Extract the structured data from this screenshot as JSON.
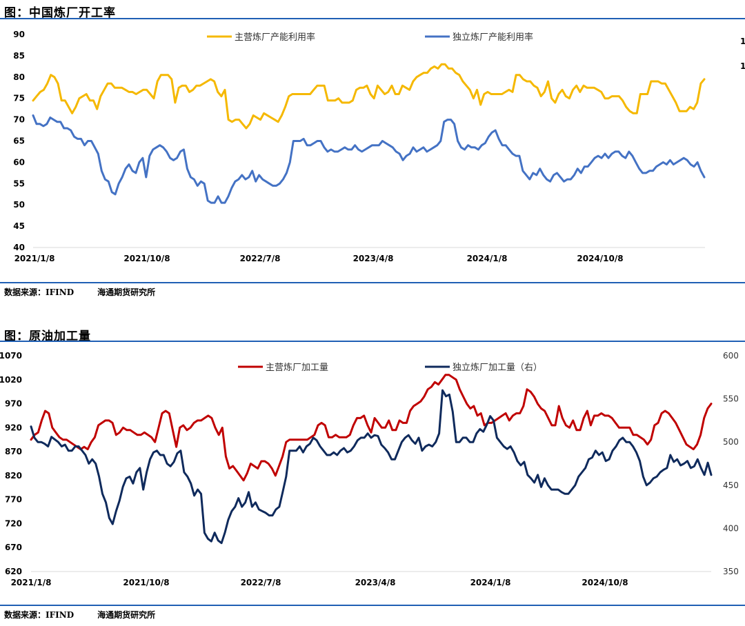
{
  "panels": [
    {
      "title": "图：中国炼厂开工率",
      "source_label": "数据来源：IFIND",
      "source_org": "海通期货研究所"
    },
    {
      "title": "图：原油加工量",
      "source_label": "数据来源：IFIND",
      "source_org": "海通期货研究所"
    }
  ],
  "chart_data": [
    {
      "type": "line",
      "title": "图：中国炼厂开工率",
      "xlabel": "",
      "ylabel": "",
      "x_ticks": [
        "2021/1/8",
        "2021/10/8",
        "2022/7/8",
        "2023/4/8",
        "2024/1/8",
        "2024/10/8"
      ],
      "ylim": [
        40,
        90
      ],
      "y_ticks": [
        "40",
        "45",
        "50",
        "55",
        "60",
        "65",
        "70",
        "75",
        "80",
        "85",
        "90"
      ],
      "right_axis_partial": [
        "1",
        "1"
      ],
      "legend_position": "top",
      "grid": false,
      "series": [
        {
          "name": "主营炼厂产能利用率",
          "color": "#F5B800",
          "axis": "left",
          "values": [
            74.5,
            75.5,
            76.5,
            77,
            78.5,
            80.5,
            80,
            78.5,
            74.5,
            74.5,
            73,
            71.5,
            73,
            75,
            75.5,
            76,
            74.5,
            74.5,
            72.5,
            75.5,
            77,
            78.5,
            78.5,
            77.5,
            77.5,
            77.5,
            77,
            76.5,
            76.5,
            76,
            76.5,
            77,
            77,
            76,
            75,
            79,
            80.5,
            80.5,
            80.5,
            79.5,
            74,
            77.5,
            78,
            78,
            76.5,
            77,
            78,
            78,
            78.5,
            79,
            79.5,
            79,
            76.5,
            75.5,
            77,
            70,
            69.5,
            70,
            70,
            69,
            68,
            69,
            71,
            70.5,
            70,
            71.5,
            71,
            70.5,
            70,
            69.5,
            71,
            73,
            75.5,
            76,
            76,
            76,
            76,
            76,
            76,
            77,
            78,
            78,
            78,
            74.5,
            74.5,
            74.5,
            75,
            74,
            74,
            74,
            74.5,
            77,
            77.5,
            77.5,
            78,
            76,
            75,
            78,
            77,
            76,
            76.5,
            78,
            76,
            76,
            78,
            77.5,
            77,
            79,
            80,
            80.5,
            81,
            81,
            82,
            82.5,
            82,
            83,
            83,
            82,
            82,
            81,
            80.5,
            79,
            78,
            77,
            75,
            77,
            73.5,
            76,
            76.5,
            76,
            76,
            76,
            76,
            76.5,
            77,
            76.5,
            80.5,
            80.5,
            79.5,
            79,
            79,
            78,
            77.5,
            75.5,
            76.5,
            79,
            75,
            74,
            76,
            77,
            75.5,
            75,
            77,
            78,
            76.5,
            78,
            77.5,
            77.5,
            77.5,
            77,
            76.5,
            75,
            75,
            75.5,
            75.5,
            75.5,
            74.5,
            73,
            72,
            71.5,
            71.5,
            76,
            76,
            76,
            79,
            79,
            79,
            78.5,
            78.5,
            77,
            75.5,
            74,
            72,
            72,
            72,
            73,
            72.5,
            74,
            78.5,
            79.5
          ]
        },
        {
          "name": "独立炼厂产能利用率",
          "color": "#4472C4",
          "axis": "left",
          "values": [
            71,
            69,
            69,
            68.5,
            69,
            70.5,
            70,
            69.5,
            69.5,
            68,
            68,
            67.5,
            66,
            65.5,
            65.5,
            64,
            65,
            65,
            63.5,
            62,
            58,
            56,
            55.5,
            53,
            52.5,
            55,
            56.5,
            58.5,
            59.5,
            58,
            57.5,
            60,
            61,
            56.5,
            61.5,
            63,
            63.5,
            64,
            63.5,
            62.5,
            61,
            60.5,
            61,
            62.5,
            63,
            58.5,
            56.5,
            56,
            54.5,
            55.5,
            55,
            51,
            50.5,
            50.5,
            52,
            50.5,
            50.5,
            52,
            54,
            55.5,
            56,
            57,
            56,
            56.5,
            58,
            55.5,
            57,
            56,
            55.5,
            55,
            54.5,
            54.5,
            55,
            56,
            57.5,
            60,
            65,
            65,
            65,
            65.5,
            64,
            64,
            64.5,
            65,
            65,
            63.5,
            62.5,
            63,
            62.5,
            62.5,
            63,
            63.5,
            63,
            63,
            64,
            63,
            62.5,
            63,
            63.5,
            64,
            64,
            64,
            65,
            64.5,
            64,
            63.5,
            62.5,
            62,
            60.5,
            61.5,
            62,
            63.5,
            62.5,
            63,
            63.5,
            62.5,
            63,
            63.5,
            64,
            65,
            69.5,
            70,
            70,
            69,
            65,
            63.5,
            63,
            64,
            63.5,
            63.5,
            63,
            64,
            64.5,
            66,
            67,
            67.5,
            65.5,
            64,
            64,
            63,
            62,
            61.5,
            61.5,
            58,
            57,
            56,
            57.5,
            57,
            58.5,
            57,
            56,
            55.5,
            57,
            57.5,
            56.5,
            55.5,
            56,
            56,
            57,
            58.5,
            57.5,
            59,
            59,
            60,
            61,
            61.5,
            61,
            62,
            61,
            62,
            62.5,
            62.5,
            61.5,
            61,
            62.5,
            61.5,
            60,
            58.5,
            57.5,
            57.5,
            58,
            58,
            59,
            59.5,
            60,
            59.5,
            60.5,
            59.5,
            60,
            60.5,
            61,
            60.5,
            59.5,
            59,
            60,
            58,
            56.5
          ]
        }
      ]
    },
    {
      "type": "line",
      "title": "图：原油加工量",
      "xlabel": "",
      "ylabel": "",
      "x_ticks": [
        "2021/1/8",
        "2021/10/8",
        "2022/7/8",
        "2023/4/8",
        "2024/1/8",
        "2024/10/8"
      ],
      "ylim": [
        620,
        1070
      ],
      "y_ticks": [
        "620",
        "670",
        "720",
        "770",
        "820",
        "870",
        "920",
        "970",
        "1020",
        "1070"
      ],
      "y2lim": [
        350,
        600
      ],
      "y2_ticks": [
        "350",
        "400",
        "450",
        "500",
        "550",
        "600"
      ],
      "legend_position": "top",
      "grid": false,
      "series": [
        {
          "name": "主营炼厂加工量",
          "color": "#C00000",
          "axis": "left",
          "values": [
            895,
            905,
            910,
            935,
            955,
            950,
            920,
            910,
            900,
            895,
            895,
            890,
            885,
            880,
            875,
            880,
            875,
            890,
            900,
            925,
            930,
            935,
            935,
            930,
            905,
            910,
            920,
            915,
            915,
            910,
            905,
            905,
            910,
            905,
            900,
            890,
            920,
            950,
            955,
            950,
            915,
            880,
            920,
            925,
            915,
            920,
            930,
            935,
            935,
            940,
            945,
            940,
            920,
            905,
            920,
            860,
            835,
            840,
            830,
            820,
            810,
            825,
            845,
            840,
            835,
            850,
            850,
            845,
            835,
            820,
            840,
            860,
            890,
            895,
            895,
            895,
            895,
            895,
            895,
            900,
            905,
            925,
            930,
            925,
            900,
            900,
            905,
            900,
            900,
            900,
            905,
            925,
            940,
            940,
            945,
            925,
            910,
            940,
            930,
            920,
            920,
            935,
            915,
            915,
            935,
            930,
            930,
            955,
            965,
            970,
            975,
            985,
            1000,
            1005,
            1015,
            1010,
            1020,
            1030,
            1030,
            1025,
            1020,
            1000,
            985,
            970,
            960,
            965,
            945,
            950,
            925,
            930,
            930,
            935,
            940,
            945,
            950,
            935,
            945,
            950,
            950,
            965,
            1000,
            995,
            985,
            970,
            960,
            955,
            940,
            925,
            925,
            965,
            940,
            925,
            920,
            935,
            915,
            915,
            940,
            955,
            925,
            945,
            945,
            950,
            945,
            945,
            940,
            930,
            920,
            920,
            920,
            920,
            905,
            905,
            900,
            895,
            885,
            895,
            925,
            930,
            950,
            955,
            950,
            940,
            930,
            915,
            900,
            885,
            880,
            875,
            885,
            905,
            940,
            960,
            970
          ]
        },
        {
          "name": "独立炼厂加工量（右）",
          "color": "#0F2A5C",
          "axis": "right",
          "values": [
            518,
            505,
            500,
            500,
            498,
            495,
            506,
            503,
            500,
            495,
            497,
            490,
            490,
            495,
            495,
            490,
            485,
            475,
            480,
            475,
            460,
            440,
            430,
            412,
            405,
            420,
            432,
            448,
            458,
            460,
            452,
            465,
            470,
            445,
            465,
            480,
            488,
            490,
            485,
            485,
            475,
            472,
            477,
            487,
            490,
            465,
            460,
            452,
            438,
            445,
            440,
            395,
            388,
            385,
            395,
            386,
            383,
            395,
            410,
            420,
            425,
            435,
            425,
            430,
            442,
            425,
            430,
            422,
            420,
            418,
            415,
            415,
            422,
            425,
            442,
            460,
            490,
            490,
            490,
            495,
            488,
            495,
            498,
            505,
            502,
            495,
            490,
            485,
            485,
            488,
            485,
            490,
            493,
            488,
            490,
            495,
            502,
            505,
            505,
            510,
            505,
            508,
            507,
            497,
            493,
            488,
            480,
            480,
            490,
            500,
            505,
            508,
            502,
            498,
            505,
            490,
            495,
            497,
            495,
            500,
            510,
            560,
            553,
            555,
            535,
            500,
            500,
            505,
            505,
            500,
            500,
            510,
            515,
            512,
            520,
            530,
            525,
            505,
            500,
            495,
            492,
            495,
            488,
            478,
            473,
            477,
            462,
            458,
            453,
            462,
            448,
            458,
            450,
            445,
            445,
            445,
            442,
            440,
            440,
            445,
            450,
            460,
            465,
            470,
            480,
            482,
            490,
            485,
            488,
            478,
            480,
            490,
            495,
            502,
            505,
            500,
            500,
            495,
            488,
            478,
            460,
            450,
            453,
            458,
            460,
            465,
            468,
            470,
            485,
            477,
            480,
            473,
            475,
            478,
            470,
            472,
            480,
            470,
            462,
            476,
            462
          ]
        }
      ]
    }
  ]
}
